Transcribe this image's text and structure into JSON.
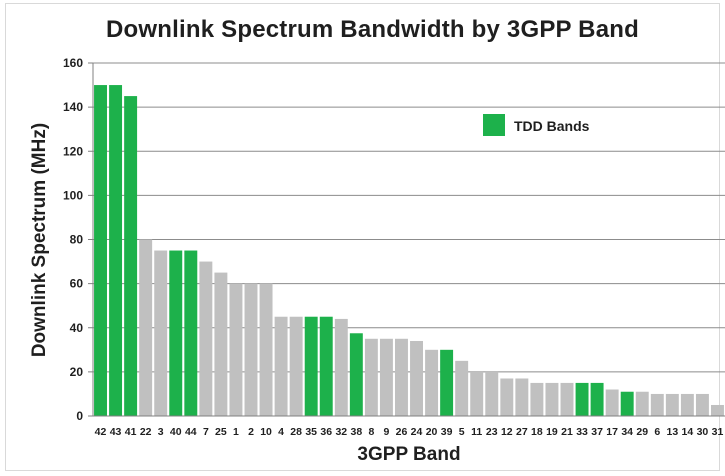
{
  "chart_data": {
    "type": "bar",
    "title": "Downlink Spectrum Bandwidth by 3GPP Band",
    "xlabel": "3GPP Band",
    "ylabel": "Downlink Spectrum (MHz)",
    "ylim": [
      0,
      160
    ],
    "yticks": [
      0,
      20,
      40,
      60,
      80,
      100,
      120,
      140,
      160
    ],
    "grid": true,
    "legend_position": "top-right",
    "colors": {
      "tdd": "#1db14b",
      "fdd": "#c0c0c0",
      "grid": "#8c8c8c",
      "axis": "#808080"
    },
    "legend": [
      {
        "label": "TDD Bands",
        "color": "#1db14b"
      }
    ],
    "categories": [
      "42",
      "43",
      "41",
      "22",
      "3",
      "40",
      "44",
      "7",
      "25",
      "1",
      "2",
      "10",
      "4",
      "28",
      "35",
      "36",
      "32",
      "38",
      "8",
      "9",
      "26",
      "24",
      "20",
      "39",
      "5",
      "11",
      "23",
      "12",
      "27",
      "18",
      "19",
      "21",
      "33",
      "37",
      "17",
      "34",
      "29",
      "6",
      "13",
      "14",
      "30",
      "31"
    ],
    "values": [
      150,
      150,
      145,
      80,
      75,
      75,
      75,
      70,
      65,
      60,
      60,
      60,
      45,
      45,
      45,
      45,
      44,
      37.5,
      35,
      35,
      35,
      34,
      30,
      30,
      25,
      20,
      20,
      17,
      17,
      15,
      15,
      15,
      15,
      15,
      12,
      11,
      11,
      10,
      10,
      10,
      10,
      5
    ],
    "tdd": [
      true,
      true,
      true,
      false,
      false,
      true,
      true,
      false,
      false,
      false,
      false,
      false,
      false,
      false,
      true,
      true,
      false,
      true,
      false,
      false,
      false,
      false,
      false,
      true,
      false,
      false,
      false,
      false,
      false,
      false,
      false,
      false,
      true,
      true,
      false,
      true,
      false,
      false,
      false,
      false,
      false,
      false
    ]
  }
}
